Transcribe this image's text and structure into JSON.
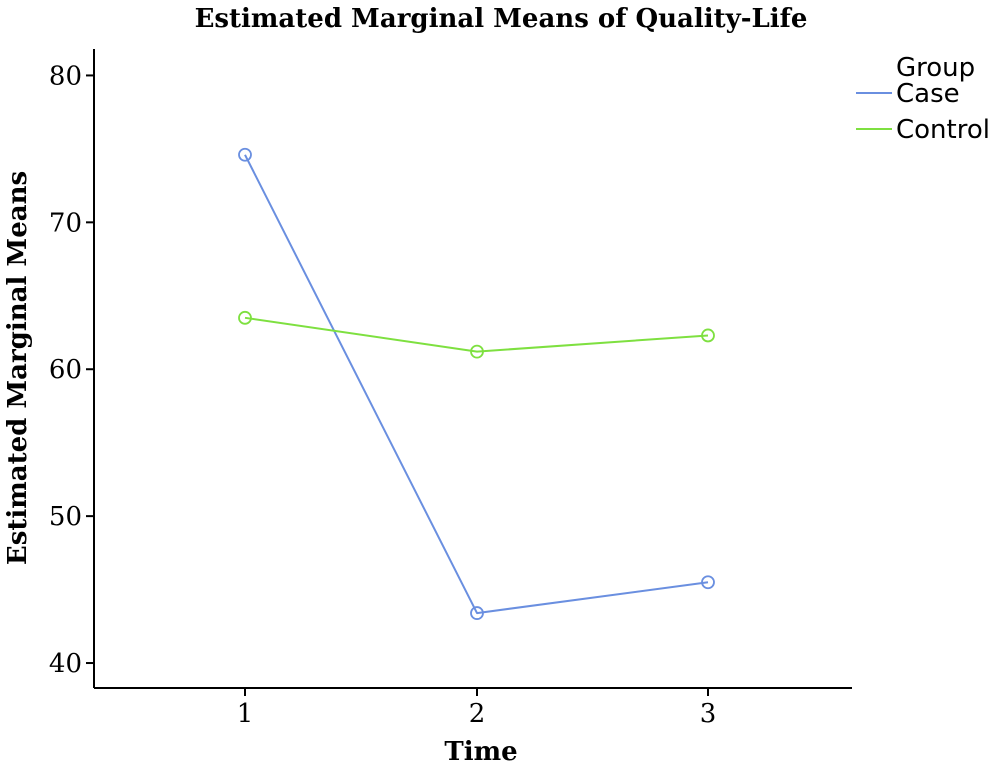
{
  "chart_data": {
    "type": "line",
    "title": "Estimated Marginal Means of Quality-Life",
    "xlabel": "Time",
    "ylabel": "Estimated Marginal Means",
    "categories": [
      "1",
      "2",
      "3"
    ],
    "y_ticks": [
      "40",
      "50",
      "60",
      "70",
      "80"
    ],
    "ylim": [
      38.3,
      81.8
    ],
    "legend_title": "Group",
    "legend_position": "top-right",
    "grid": false,
    "series": [
      {
        "name": "Case",
        "color": "#6a8fe0",
        "values": [
          74.6,
          43.4,
          45.5
        ]
      },
      {
        "name": "Control",
        "color": "#7ee040",
        "values": [
          63.5,
          61.2,
          62.3
        ]
      }
    ]
  }
}
